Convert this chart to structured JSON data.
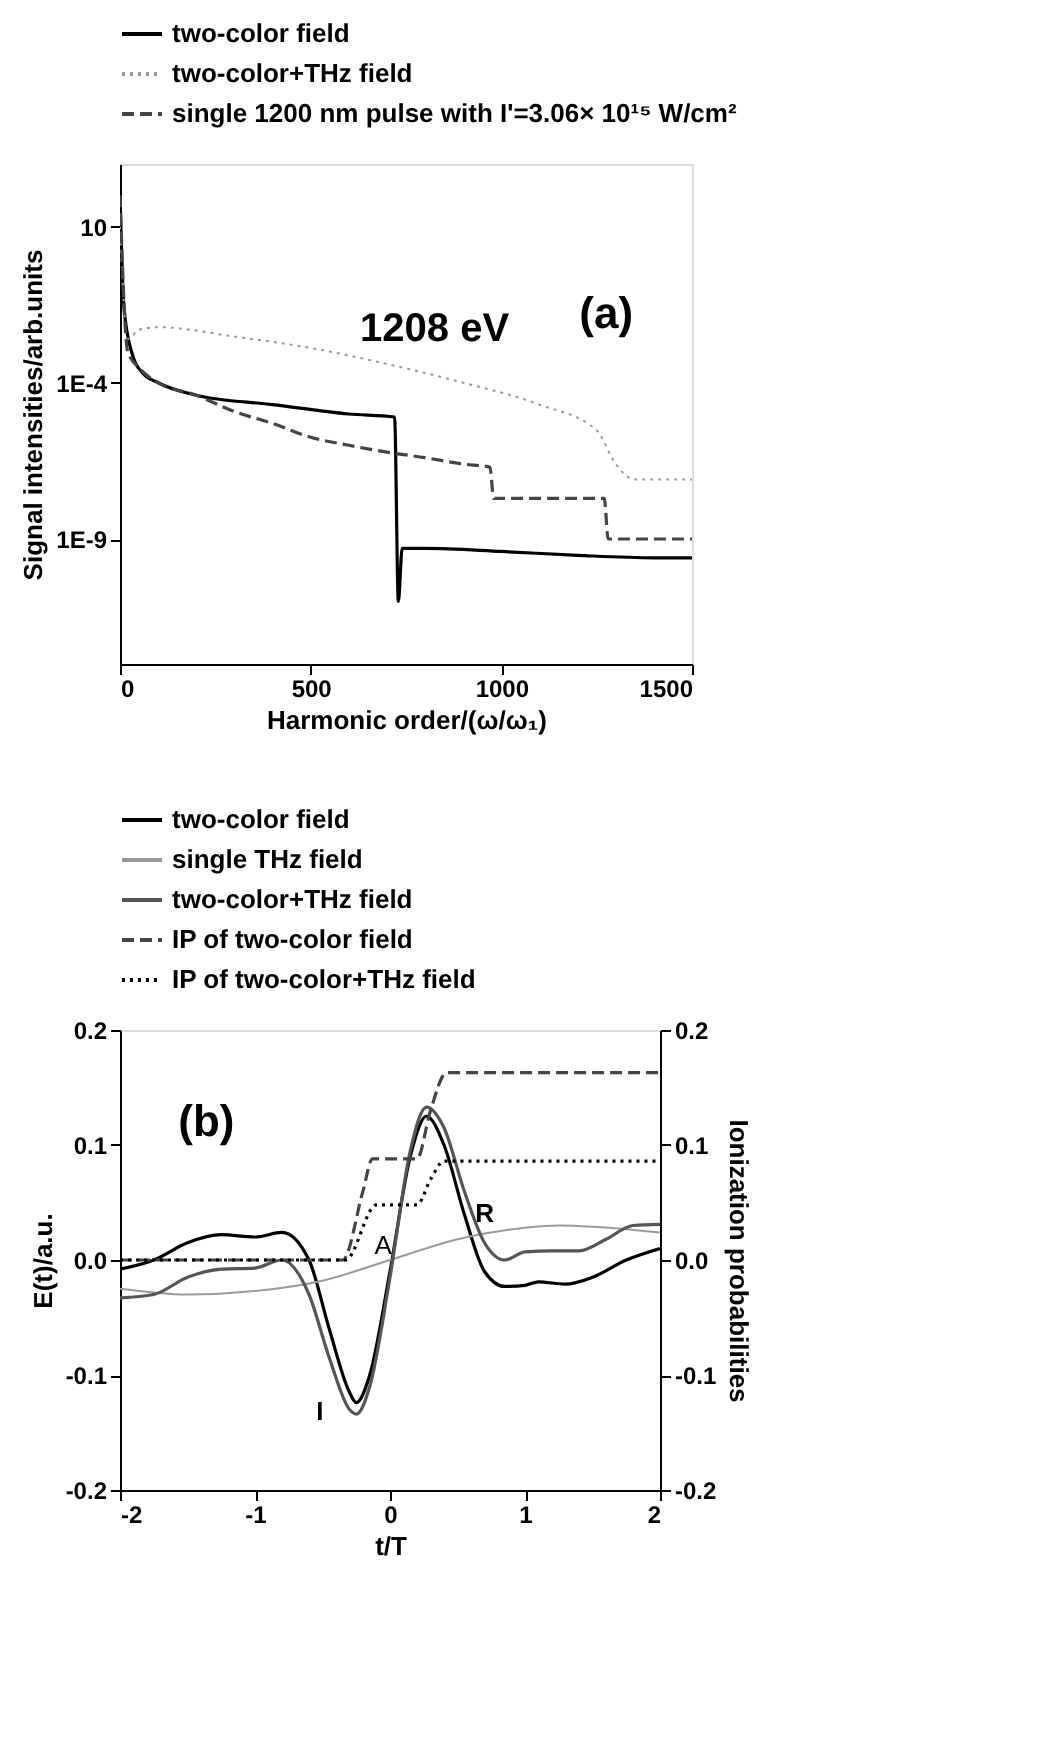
{
  "chart_data": [
    {
      "type": "line",
      "xlabel": "Harmonic order/(ω/ω₁)",
      "ylabel": "Signal intensities/arb.units",
      "log": "y",
      "xlim": [
        0,
        1500
      ],
      "xticks": [
        0,
        500,
        1000,
        1500
      ],
      "ylim": [
        1e-13,
        1000
      ],
      "yticks": [
        {
          "value": 10,
          "label": "10"
        },
        {
          "value": 0.0001,
          "label": "1E-4"
        },
        {
          "value": 1e-09,
          "label": "1E-9"
        }
      ],
      "grid": false,
      "legend": "top",
      "marker": "none",
      "annotations": [
        "1208 eV",
        "(a)"
      ],
      "series": [
        {
          "name": "two-color field",
          "color": "#000000",
          "line_style": "solid",
          "x": [
            0,
            10,
            30,
            60,
            100,
            200,
            400,
            600,
            720,
            730,
            740,
            800,
            1000,
            1200,
            1400,
            1500
          ],
          "values": [
            100,
            0.03,
            0.001,
            0.0002,
            0.0001,
            4e-05,
            2e-05,
            1e-05,
            8e-06,
            1e-11,
            5e-10,
            5e-10,
            4e-10,
            3e-10,
            2.5e-10,
            2.5e-10
          ]
        },
        {
          "name": "two-color+THz field",
          "color": "#999999",
          "line_style": "dotted",
          "x": [
            0,
            20,
            50,
            100,
            300,
            500,
            700,
            900,
            1100,
            1250,
            1300,
            1350,
            1500
          ],
          "values": [
            10,
            0.0025,
            0.005,
            0.006,
            0.003,
            0.0013,
            0.0004,
            0.0001,
            2e-05,
            3e-06,
            2.5e-07,
            8e-08,
            8e-08
          ]
        },
        {
          "name": "single 1200 nm pulse with I'=3.06× 10¹⁵ W/cm²",
          "color": "#444444",
          "line_style": "dashed",
          "x": [
            0,
            20,
            50,
            100,
            200,
            300,
            400,
            500,
            600,
            700,
            800,
            900,
            970,
            980,
            1100,
            1270,
            1280,
            1400,
            1500
          ],
          "values": [
            100,
            0.001,
            0.0003,
            0.0001,
            4e-05,
            1.2e-05,
            5e-06,
            1.8e-06,
            1e-06,
            6e-07,
            4e-07,
            2.5e-07,
            2e-07,
            2e-08,
            2e-08,
            2e-08,
            1e-09,
            1e-09,
            1e-09
          ]
        }
      ]
    },
    {
      "type": "line",
      "xlabel": "t/T",
      "ylabel": "E(t)/a.u.",
      "y2label": "Ionization probabilities",
      "xlim": [
        -2,
        2
      ],
      "xticks": [
        -2,
        -1,
        0,
        1,
        2
      ],
      "ylim": [
        -0.2,
        0.2
      ],
      "yticks": [
        -0.2,
        -0.1,
        {
          "value": 0,
          "label": "0.0"
        },
        0.1,
        0.2
      ],
      "y2lim": [
        -0.2,
        0.2
      ],
      "y2ticks": [
        -0.2,
        -0.1,
        {
          "value": 0,
          "label": "0.0"
        },
        0.1,
        0.2
      ],
      "grid": false,
      "legend": "top",
      "marker": "none",
      "annotations": [
        "(b)",
        "I",
        {
          "text": "A",
          "x": -0.05,
          "y": 0.012
        },
        "R"
      ],
      "series": [
        {
          "name": "two-color field",
          "color": "#000000",
          "line_style": "solid",
          "x": [
            -2,
            -1.75,
            -1.5,
            -1.25,
            -1,
            -0.8,
            -0.6,
            -0.45,
            -0.3,
            -0.25,
            -0.15,
            0,
            0.15,
            0.27,
            0.4,
            0.55,
            0.7,
            0.85,
            1,
            1.1,
            1.3,
            1.5,
            1.75,
            2
          ],
          "values": [
            -0.008,
            0.0,
            0.015,
            0.022,
            0.02,
            0.024,
            0.0,
            -0.06,
            -0.115,
            -0.124,
            -0.1,
            -0.01,
            0.09,
            0.125,
            0.1,
            0.04,
            -0.01,
            -0.023,
            -0.022,
            -0.019,
            -0.021,
            -0.015,
            0.0,
            0.01
          ]
        },
        {
          "name": "single THz field",
          "color": "#999999",
          "line_style": "solid",
          "x": [
            -2,
            -1.5,
            -1,
            -0.5,
            0,
            0.5,
            1,
            1.25,
            1.5,
            2
          ],
          "values": [
            -0.025,
            -0.03,
            -0.027,
            -0.018,
            0.0,
            0.018,
            0.028,
            0.03,
            0.029,
            0.024
          ]
        },
        {
          "name": "two-color+THz field",
          "color": "#555555",
          "line_style": "solid",
          "x": [
            -2,
            -1.75,
            -1.5,
            -1.25,
            -1,
            -0.8,
            -0.6,
            -0.45,
            -0.3,
            -0.25,
            -0.15,
            0,
            0.15,
            0.27,
            0.4,
            0.55,
            0.7,
            0.85,
            1,
            1.2,
            1.4,
            1.6,
            1.8,
            2
          ],
          "values": [
            -0.033,
            -0.03,
            -0.015,
            -0.008,
            -0.007,
            0.0,
            -0.03,
            -0.085,
            -0.13,
            -0.134,
            -0.11,
            -0.015,
            0.095,
            0.133,
            0.115,
            0.06,
            0.015,
            0.0,
            0.007,
            0.008,
            0.008,
            0.018,
            0.03,
            0.031
          ]
        },
        {
          "name": "IP of two-color field",
          "color": "#444444",
          "line_style": "dashed",
          "axis": "y2",
          "x": [
            -2,
            -0.35,
            -0.2,
            -0.13,
            0.2,
            0.3,
            0.42,
            2
          ],
          "values": [
            0,
            0,
            0.06,
            0.088,
            0.088,
            0.13,
            0.163,
            0.163
          ]
        },
        {
          "name": "IP of two-color+THz field",
          "color": "#000000",
          "line_style": "dotted",
          "axis": "y2",
          "x": [
            -2,
            -0.33,
            -0.1,
            0.2,
            0.3,
            0.4,
            2
          ],
          "values": [
            0,
            0,
            0.048,
            0.048,
            0.07,
            0.086,
            0.086
          ]
        }
      ]
    }
  ]
}
